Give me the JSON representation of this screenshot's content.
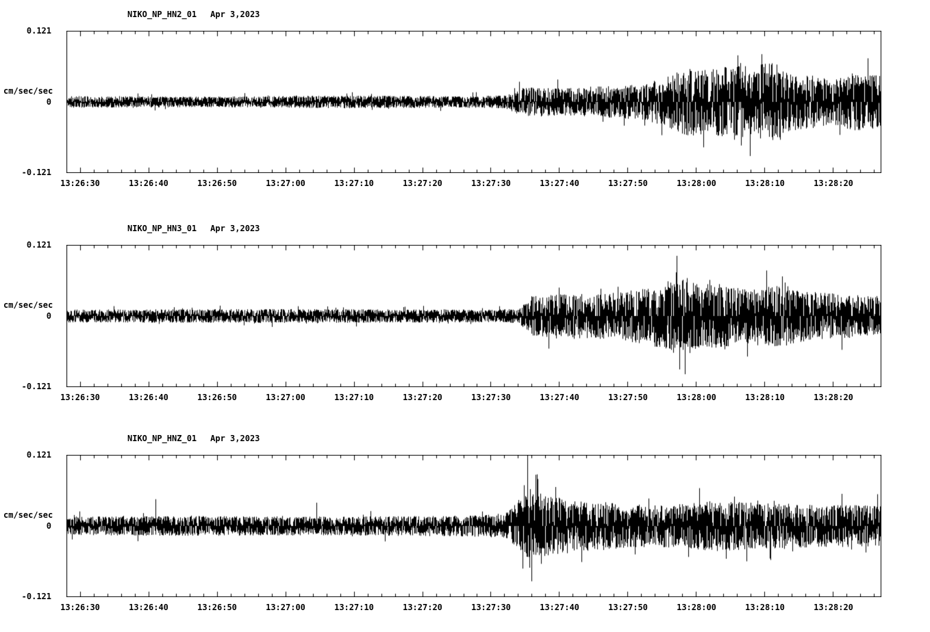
{
  "figure": {
    "background": "#ffffff",
    "trace_color": "#000000",
    "axis_color": "#000000"
  },
  "chart_data": [
    {
      "type": "line",
      "id": "HN2",
      "title": "NIKO_NP_HN2_01",
      "date": "Apr 3,2023",
      "ylabel": "cm/sec/sec",
      "ylim": [
        -0.121,
        0.121
      ],
      "ytick_labels": [
        "0.121",
        "0",
        "-0.121"
      ],
      "x_tick_labels": [
        "13:26:30",
        "13:26:40",
        "13:26:50",
        "13:27:00",
        "13:27:10",
        "13:27:20",
        "13:27:30",
        "13:27:40",
        "13:27:50",
        "13:28:00",
        "13:28:10",
        "13:28:20"
      ],
      "duration_s": 119,
      "xtick_start_s": 2,
      "xtick_interval_s": 10,
      "minor_tick_s": 2,
      "seed": 11,
      "envelope": [
        [
          0,
          0.01
        ],
        [
          20,
          0.009
        ],
        [
          40,
          0.011
        ],
        [
          55,
          0.01
        ],
        [
          64,
          0.011
        ],
        [
          67,
          0.026
        ],
        [
          72,
          0.024
        ],
        [
          78,
          0.027
        ],
        [
          84,
          0.03
        ],
        [
          88,
          0.045
        ],
        [
          91,
          0.06
        ],
        [
          94,
          0.055
        ],
        [
          97,
          0.065
        ],
        [
          100,
          0.06
        ],
        [
          103,
          0.07
        ],
        [
          106,
          0.05
        ],
        [
          109,
          0.045
        ],
        [
          112,
          0.04
        ],
        [
          115,
          0.05
        ],
        [
          119,
          0.045
        ]
      ],
      "spikes": [
        {
          "t": 93.0,
          "v": -0.078
        },
        {
          "t": 98.0,
          "v": 0.08
        },
        {
          "t": 101.5,
          "v": 0.082
        },
        {
          "t": 104.2,
          "v": -0.065
        }
      ]
    },
    {
      "type": "line",
      "id": "HN3",
      "title": "NIKO_NP_HN3_01",
      "date": "Apr 3,2023",
      "ylabel": "cm/sec/sec",
      "ylim": [
        -0.121,
        0.121
      ],
      "ytick_labels": [
        "0.121",
        "0",
        "-0.121"
      ],
      "x_tick_labels": [
        "13:26:30",
        "13:26:40",
        "13:26:50",
        "13:27:00",
        "13:27:10",
        "13:27:20",
        "13:27:30",
        "13:27:40",
        "13:27:50",
        "13:28:00",
        "13:28:10",
        "13:28:20"
      ],
      "duration_s": 119,
      "xtick_start_s": 2,
      "xtick_interval_s": 10,
      "minor_tick_s": 2,
      "seed": 22,
      "envelope": [
        [
          0,
          0.011
        ],
        [
          30,
          0.012
        ],
        [
          60,
          0.011
        ],
        [
          66,
          0.012
        ],
        [
          68,
          0.035
        ],
        [
          74,
          0.038
        ],
        [
          80,
          0.04
        ],
        [
          85,
          0.05
        ],
        [
          89,
          0.065
        ],
        [
          92,
          0.06
        ],
        [
          95,
          0.055
        ],
        [
          98,
          0.05
        ],
        [
          101,
          0.045
        ],
        [
          104,
          0.055
        ],
        [
          107,
          0.045
        ],
        [
          110,
          0.04
        ],
        [
          114,
          0.038
        ],
        [
          119,
          0.034
        ]
      ],
      "spikes": [
        {
          "t": 89.0,
          "v": 0.075
        },
        {
          "t": 90.3,
          "v": -0.1
        },
        {
          "t": 104.5,
          "v": 0.068
        }
      ]
    },
    {
      "type": "line",
      "id": "HNZ",
      "title": "NIKO_NP_HNZ_01",
      "date": "Apr 3,2023",
      "ylabel": "cm/sec/sec",
      "ylim": [
        -0.121,
        0.121
      ],
      "ytick_labels": [
        "0.121",
        "0",
        "-0.121"
      ],
      "x_tick_labels": [
        "13:26:30",
        "13:26:40",
        "13:26:50",
        "13:27:00",
        "13:27:10",
        "13:27:20",
        "13:27:30",
        "13:27:40",
        "13:27:50",
        "13:28:00",
        "13:28:10",
        "13:28:20"
      ],
      "duration_s": 119,
      "xtick_start_s": 2,
      "xtick_interval_s": 10,
      "minor_tick_s": 2,
      "seed": 33,
      "envelope": [
        [
          0,
          0.016
        ],
        [
          20,
          0.017
        ],
        [
          40,
          0.016
        ],
        [
          58,
          0.018
        ],
        [
          64,
          0.02
        ],
        [
          66,
          0.045
        ],
        [
          68,
          0.06
        ],
        [
          71,
          0.05
        ],
        [
          75,
          0.045
        ],
        [
          80,
          0.04
        ],
        [
          85,
          0.036
        ],
        [
          90,
          0.038
        ],
        [
          95,
          0.044
        ],
        [
          100,
          0.04
        ],
        [
          105,
          0.038
        ],
        [
          110,
          0.036
        ],
        [
          115,
          0.036
        ],
        [
          119,
          0.034
        ]
      ],
      "spikes": [
        {
          "t": 13.0,
          "v": 0.046
        },
        {
          "t": 36.5,
          "v": 0.04
        },
        {
          "t": 66.8,
          "v": 0.07
        },
        {
          "t": 67.3,
          "v": 0.121
        },
        {
          "t": 67.9,
          "v": -0.095
        },
        {
          "t": 68.5,
          "v": 0.088
        },
        {
          "t": 69.3,
          "v": -0.065
        }
      ]
    }
  ]
}
